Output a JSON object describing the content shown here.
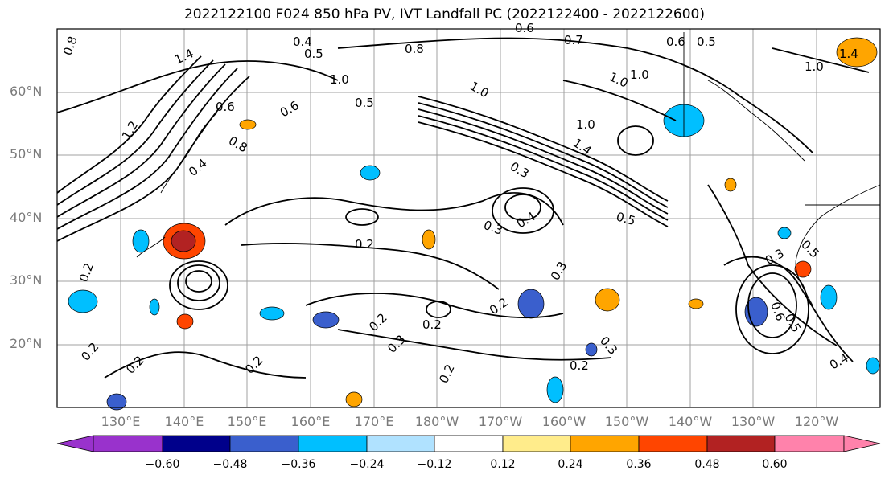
{
  "title": "2022122100 F024 850 hPa PV, IVT Landfall PC (2022122400 - 2022122600)",
  "lat_labels": [
    "60°N",
    "50°N",
    "40°N",
    "30°N",
    "20°N"
  ],
  "lon_labels": [
    "130°E",
    "140°E",
    "150°E",
    "160°E",
    "170°E",
    "180°W",
    "170°W",
    "160°W",
    "150°W",
    "140°W",
    "130°W",
    "120°W"
  ],
  "colorbar": {
    "ticks": [
      "−0.60",
      "−0.48",
      "−0.36",
      "−0.24",
      "−0.12",
      "0.12",
      "0.24",
      "0.36",
      "0.48",
      "0.60"
    ],
    "colors": [
      "#9932cc",
      "#00008b",
      "#3a5fcd",
      "#00bfff",
      "#b0e2ff",
      "#ffffff",
      "#ffec8b",
      "#ffa500",
      "#ff4500",
      "#b22222",
      "#ff82ab"
    ]
  },
  "contour_labels": [
    "0.8",
    "0.4",
    "0.5",
    "0.6",
    "0.8",
    "0.7",
    "0.6",
    "0.5",
    "1.4",
    "1.0",
    "1.4",
    "1.0",
    "0.6",
    "1.0",
    "0.5",
    "0.6",
    "0.8",
    "1.2",
    "1.0",
    "1.0",
    "0.4",
    "0.3",
    "1.4",
    "0.5",
    "0.3",
    "0.4",
    "0.2",
    "0.2",
    "0.3",
    "0.2",
    "0.2",
    "0.2",
    "0.2",
    "0.3",
    "0.2",
    "0.2",
    "0.2",
    "0.3",
    "0.5",
    "0.6",
    "0.4",
    "0.2",
    "1.0",
    "0.5",
    "0.3"
  ]
}
